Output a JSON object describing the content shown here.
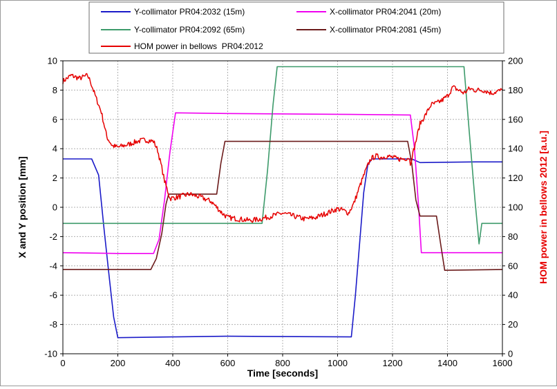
{
  "chart_data": {
    "type": "line",
    "xlabel": "Time [seconds]",
    "ylabel": "X and Y position [mm]",
    "y2label": "HOM power in bellows 2012 [a.u.]",
    "xlim": [
      0,
      1600
    ],
    "ylim": [
      -10,
      10
    ],
    "y2lim": [
      0,
      200
    ],
    "x_ticks": [
      "0",
      "200",
      "400",
      "600",
      "800",
      "1000",
      "1200",
      "1400",
      "1600"
    ],
    "y_ticks": [
      "-10",
      "-8",
      "-6",
      "-4",
      "-2",
      "0",
      "2",
      "4",
      "6",
      "8",
      "10"
    ],
    "y2_ticks": [
      "0",
      "20",
      "40",
      "60",
      "80",
      "100",
      "120",
      "140",
      "160",
      "180",
      "200"
    ],
    "grid": true,
    "legend_position": "top",
    "series": [
      {
        "name": "Y-collimator PR04:2032 (15m)",
        "color": "#1a1ac8",
        "axis": "left",
        "points": [
          [
            0,
            3.3
          ],
          [
            105,
            3.3
          ],
          [
            130,
            2.2
          ],
          [
            150,
            -1.5
          ],
          [
            170,
            -5.0
          ],
          [
            185,
            -7.5
          ],
          [
            200,
            -8.9
          ],
          [
            400,
            -8.85
          ],
          [
            600,
            -8.8
          ],
          [
            1050,
            -8.85
          ],
          [
            1065,
            -6.0
          ],
          [
            1080,
            -2.5
          ],
          [
            1095,
            1.0
          ],
          [
            1110,
            2.9
          ],
          [
            1125,
            3.3
          ],
          [
            1270,
            3.3
          ],
          [
            1300,
            3.05
          ],
          [
            1500,
            3.1
          ],
          [
            1600,
            3.1
          ]
        ]
      },
      {
        "name": "X-collimator PR04:2041 (20m)",
        "color": "#f000f0",
        "axis": "left",
        "points": [
          [
            0,
            -3.1
          ],
          [
            200,
            -3.15
          ],
          [
            330,
            -3.15
          ],
          [
            350,
            -2.2
          ],
          [
            370,
            0.5
          ],
          [
            390,
            3.8
          ],
          [
            410,
            6.45
          ],
          [
            600,
            6.4
          ],
          [
            1000,
            6.35
          ],
          [
            1265,
            6.3
          ],
          [
            1280,
            4.0
          ],
          [
            1295,
            0.0
          ],
          [
            1305,
            -3.1
          ],
          [
            1600,
            -3.1
          ]
        ]
      },
      {
        "name": "Y-collimator PR04:2092 (65m)",
        "color": "#3c9a6a",
        "axis": "left",
        "points": [
          [
            0,
            -1.1
          ],
          [
            725,
            -1.1
          ],
          [
            745,
            2.5
          ],
          [
            765,
            7.0
          ],
          [
            780,
            9.6
          ],
          [
            1000,
            9.6
          ],
          [
            1460,
            9.6
          ],
          [
            1480,
            5.0
          ],
          [
            1500,
            0.5
          ],
          [
            1515,
            -2.5
          ],
          [
            1525,
            -1.1
          ],
          [
            1600,
            -1.1
          ]
        ]
      },
      {
        "name": "X-collimator PR04:2081 (45m)",
        "color": "#6b1a1a",
        "axis": "left",
        "points": [
          [
            0,
            -4.25
          ],
          [
            320,
            -4.25
          ],
          [
            340,
            -3.5
          ],
          [
            360,
            -1.8
          ],
          [
            375,
            0.2
          ],
          [
            385,
            0.9
          ],
          [
            560,
            0.9
          ],
          [
            575,
            3.0
          ],
          [
            590,
            4.5
          ],
          [
            1000,
            4.5
          ],
          [
            1255,
            4.5
          ],
          [
            1270,
            3.0
          ],
          [
            1285,
            0.5
          ],
          [
            1300,
            -0.6
          ],
          [
            1360,
            -0.6
          ],
          [
            1375,
            -2.5
          ],
          [
            1390,
            -4.3
          ],
          [
            1600,
            -4.25
          ]
        ]
      },
      {
        "name": "HOM power in bellows  PR04:2012",
        "color": "#e60000",
        "axis": "right",
        "noise": 1.8,
        "points": [
          [
            0,
            186
          ],
          [
            30,
            190
          ],
          [
            60,
            188
          ],
          [
            90,
            190
          ],
          [
            100,
            186
          ],
          [
            120,
            175
          ],
          [
            140,
            165
          ],
          [
            160,
            148
          ],
          [
            180,
            142
          ],
          [
            200,
            141
          ],
          [
            240,
            143
          ],
          [
            270,
            145
          ],
          [
            300,
            146
          ],
          [
            330,
            145
          ],
          [
            345,
            139
          ],
          [
            360,
            127
          ],
          [
            370,
            118
          ],
          [
            390,
            106
          ],
          [
            420,
            107
          ],
          [
            460,
            109
          ],
          [
            500,
            107
          ],
          [
            540,
            104
          ],
          [
            560,
            100
          ],
          [
            580,
            96
          ],
          [
            600,
            93
          ],
          [
            640,
            92
          ],
          [
            680,
            91
          ],
          [
            720,
            92
          ],
          [
            760,
            94
          ],
          [
            800,
            96
          ],
          [
            840,
            94
          ],
          [
            880,
            92
          ],
          [
            920,
            93
          ],
          [
            960,
            96
          ],
          [
            1000,
            99
          ],
          [
            1020,
            98
          ],
          [
            1040,
            96
          ],
          [
            1060,
            103
          ],
          [
            1080,
            114
          ],
          [
            1100,
            124
          ],
          [
            1120,
            133
          ],
          [
            1140,
            135
          ],
          [
            1160,
            134
          ],
          [
            1180,
            135
          ],
          [
            1200,
            134
          ],
          [
            1220,
            133
          ],
          [
            1240,
            133
          ],
          [
            1260,
            134
          ],
          [
            1265,
            130
          ],
          [
            1280,
            141
          ],
          [
            1300,
            157
          ],
          [
            1320,
            163
          ],
          [
            1340,
            170
          ],
          [
            1360,
            171
          ],
          [
            1380,
            173
          ],
          [
            1400,
            176
          ],
          [
            1420,
            182
          ],
          [
            1440,
            180
          ],
          [
            1460,
            178
          ],
          [
            1480,
            181
          ],
          [
            1500,
            180
          ],
          [
            1530,
            180
          ],
          [
            1560,
            178
          ],
          [
            1600,
            180
          ]
        ]
      }
    ]
  }
}
